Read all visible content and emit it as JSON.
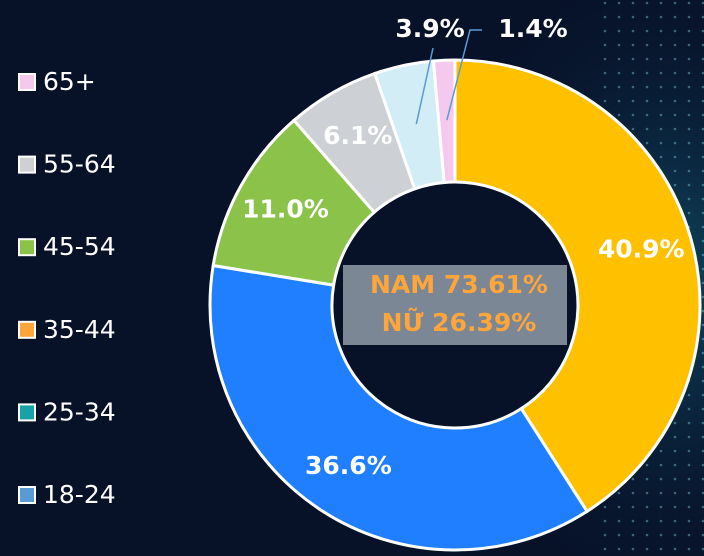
{
  "chart_data": {
    "type": "pie",
    "values": [
      40.9,
      36.6,
      11.0,
      6.1,
      3.9,
      1.4
    ],
    "value_labels": [
      "40.9%",
      "36.6%",
      "11.0%",
      "6.1%",
      "3.9%",
      "1.4%"
    ],
    "colors": [
      "#ffc000",
      "#1f7fff",
      "#8bc34a",
      "#cdd1d5",
      "#d2edf5",
      "#f5c8ee"
    ],
    "legend": [
      {
        "label": "65+",
        "color": "#f5c8ee"
      },
      {
        "label": "55-64",
        "color": "#cdd1d5"
      },
      {
        "label": "45-54",
        "color": "#8bc34a"
      },
      {
        "label": "35-44",
        "color": "#ffa53a"
      },
      {
        "label": "25-34",
        "color": "#17a2a8"
      },
      {
        "label": "18-24",
        "color": "#5b9bd5"
      }
    ],
    "annotations": [
      "NAM 73.61%",
      "NỮ 26.39%"
    ]
  }
}
